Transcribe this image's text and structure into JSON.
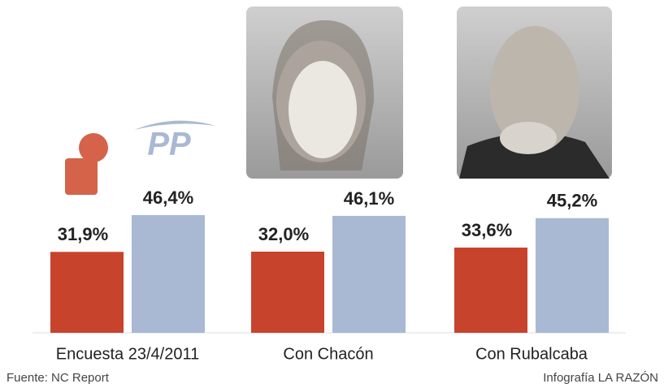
{
  "chart_data": {
    "type": "bar",
    "categories": [
      "Encuesta 23/4/2011",
      "Con Chacón",
      "Con Rubalcaba"
    ],
    "series": [
      {
        "color": "#c8432c",
        "values": [
          31.9,
          32.0,
          33.6
        ],
        "value_labels": [
          "31,9%",
          "32,0%",
          "33,6%"
        ]
      },
      {
        "name": "PP",
        "color": "#a9b9d3",
        "values": [
          46.4,
          46.1,
          45.2
        ],
        "value_labels": [
          "46,4%",
          "46,1%",
          "45,2%"
        ]
      }
    ],
    "source": "Fuente: NC Report",
    "credit": "Infografía LA RAZÓN"
  }
}
